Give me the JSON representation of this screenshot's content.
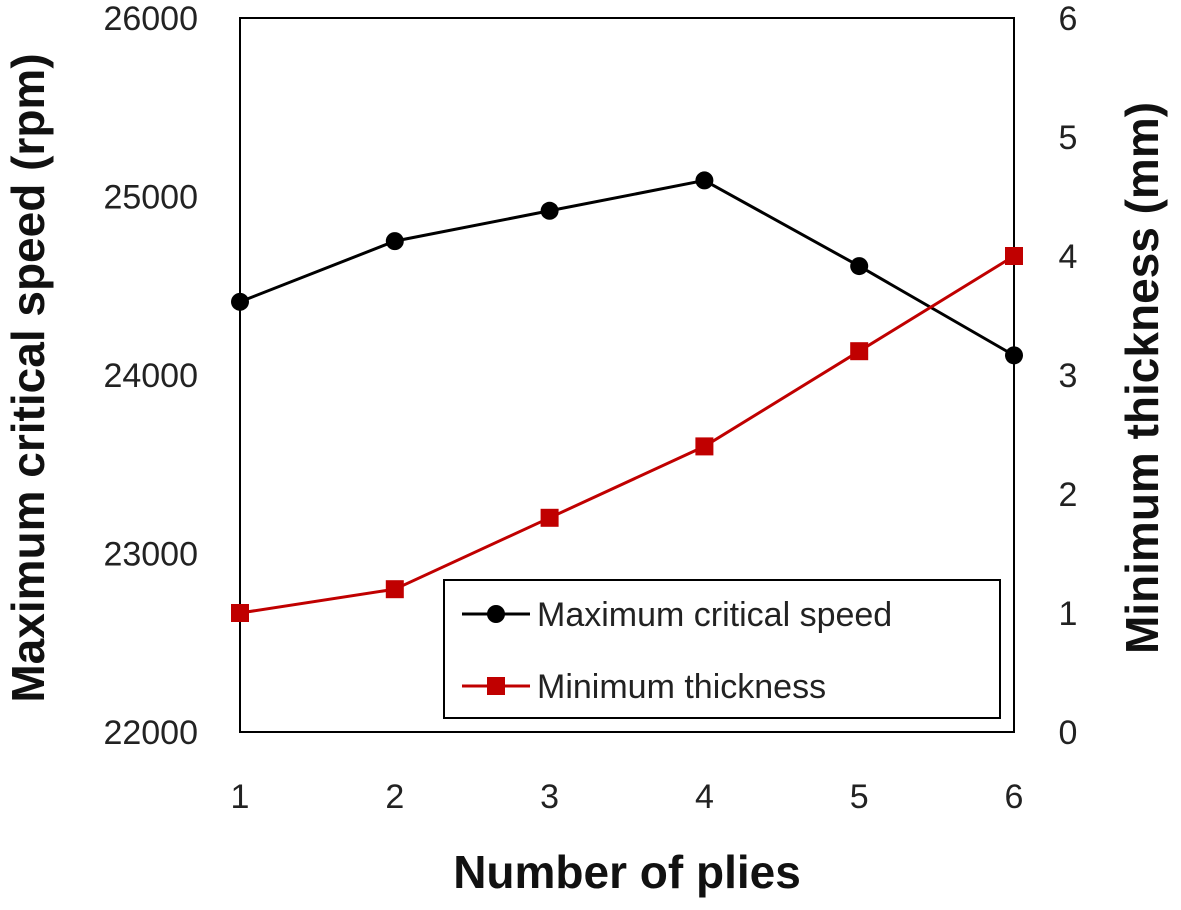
{
  "chart_data": {
    "type": "line",
    "x": [
      1,
      2,
      3,
      4,
      5,
      6
    ],
    "xlabel": "Number of plies",
    "x_ticks": [
      "1",
      "2",
      "3",
      "4",
      "5",
      "6"
    ],
    "xlim": [
      1,
      6
    ],
    "ylabel_left": "Maximum critical speed (rpm)",
    "ylim_left": [
      22000,
      26000
    ],
    "y_ticks_left": [
      "22000",
      "23000",
      "24000",
      "25000",
      "26000"
    ],
    "ylabel_right": "Minimum thickness (mm)",
    "ylim_right": [
      0,
      6
    ],
    "y_ticks_right": [
      "0",
      "1",
      "2",
      "3",
      "4",
      "5",
      "6"
    ],
    "grid": false,
    "legend_position": "bottom-right",
    "series": [
      {
        "name": "Maximum critical speed",
        "axis": "left",
        "marker": "circle",
        "color": "#000000",
        "values": [
          24410,
          24750,
          24920,
          25090,
          24610,
          24110
        ]
      },
      {
        "name": "Minimum thickness",
        "axis": "right",
        "marker": "square",
        "color": "#c00000",
        "values": [
          1.0,
          1.2,
          1.8,
          2.4,
          3.2,
          4.0
        ]
      }
    ]
  }
}
